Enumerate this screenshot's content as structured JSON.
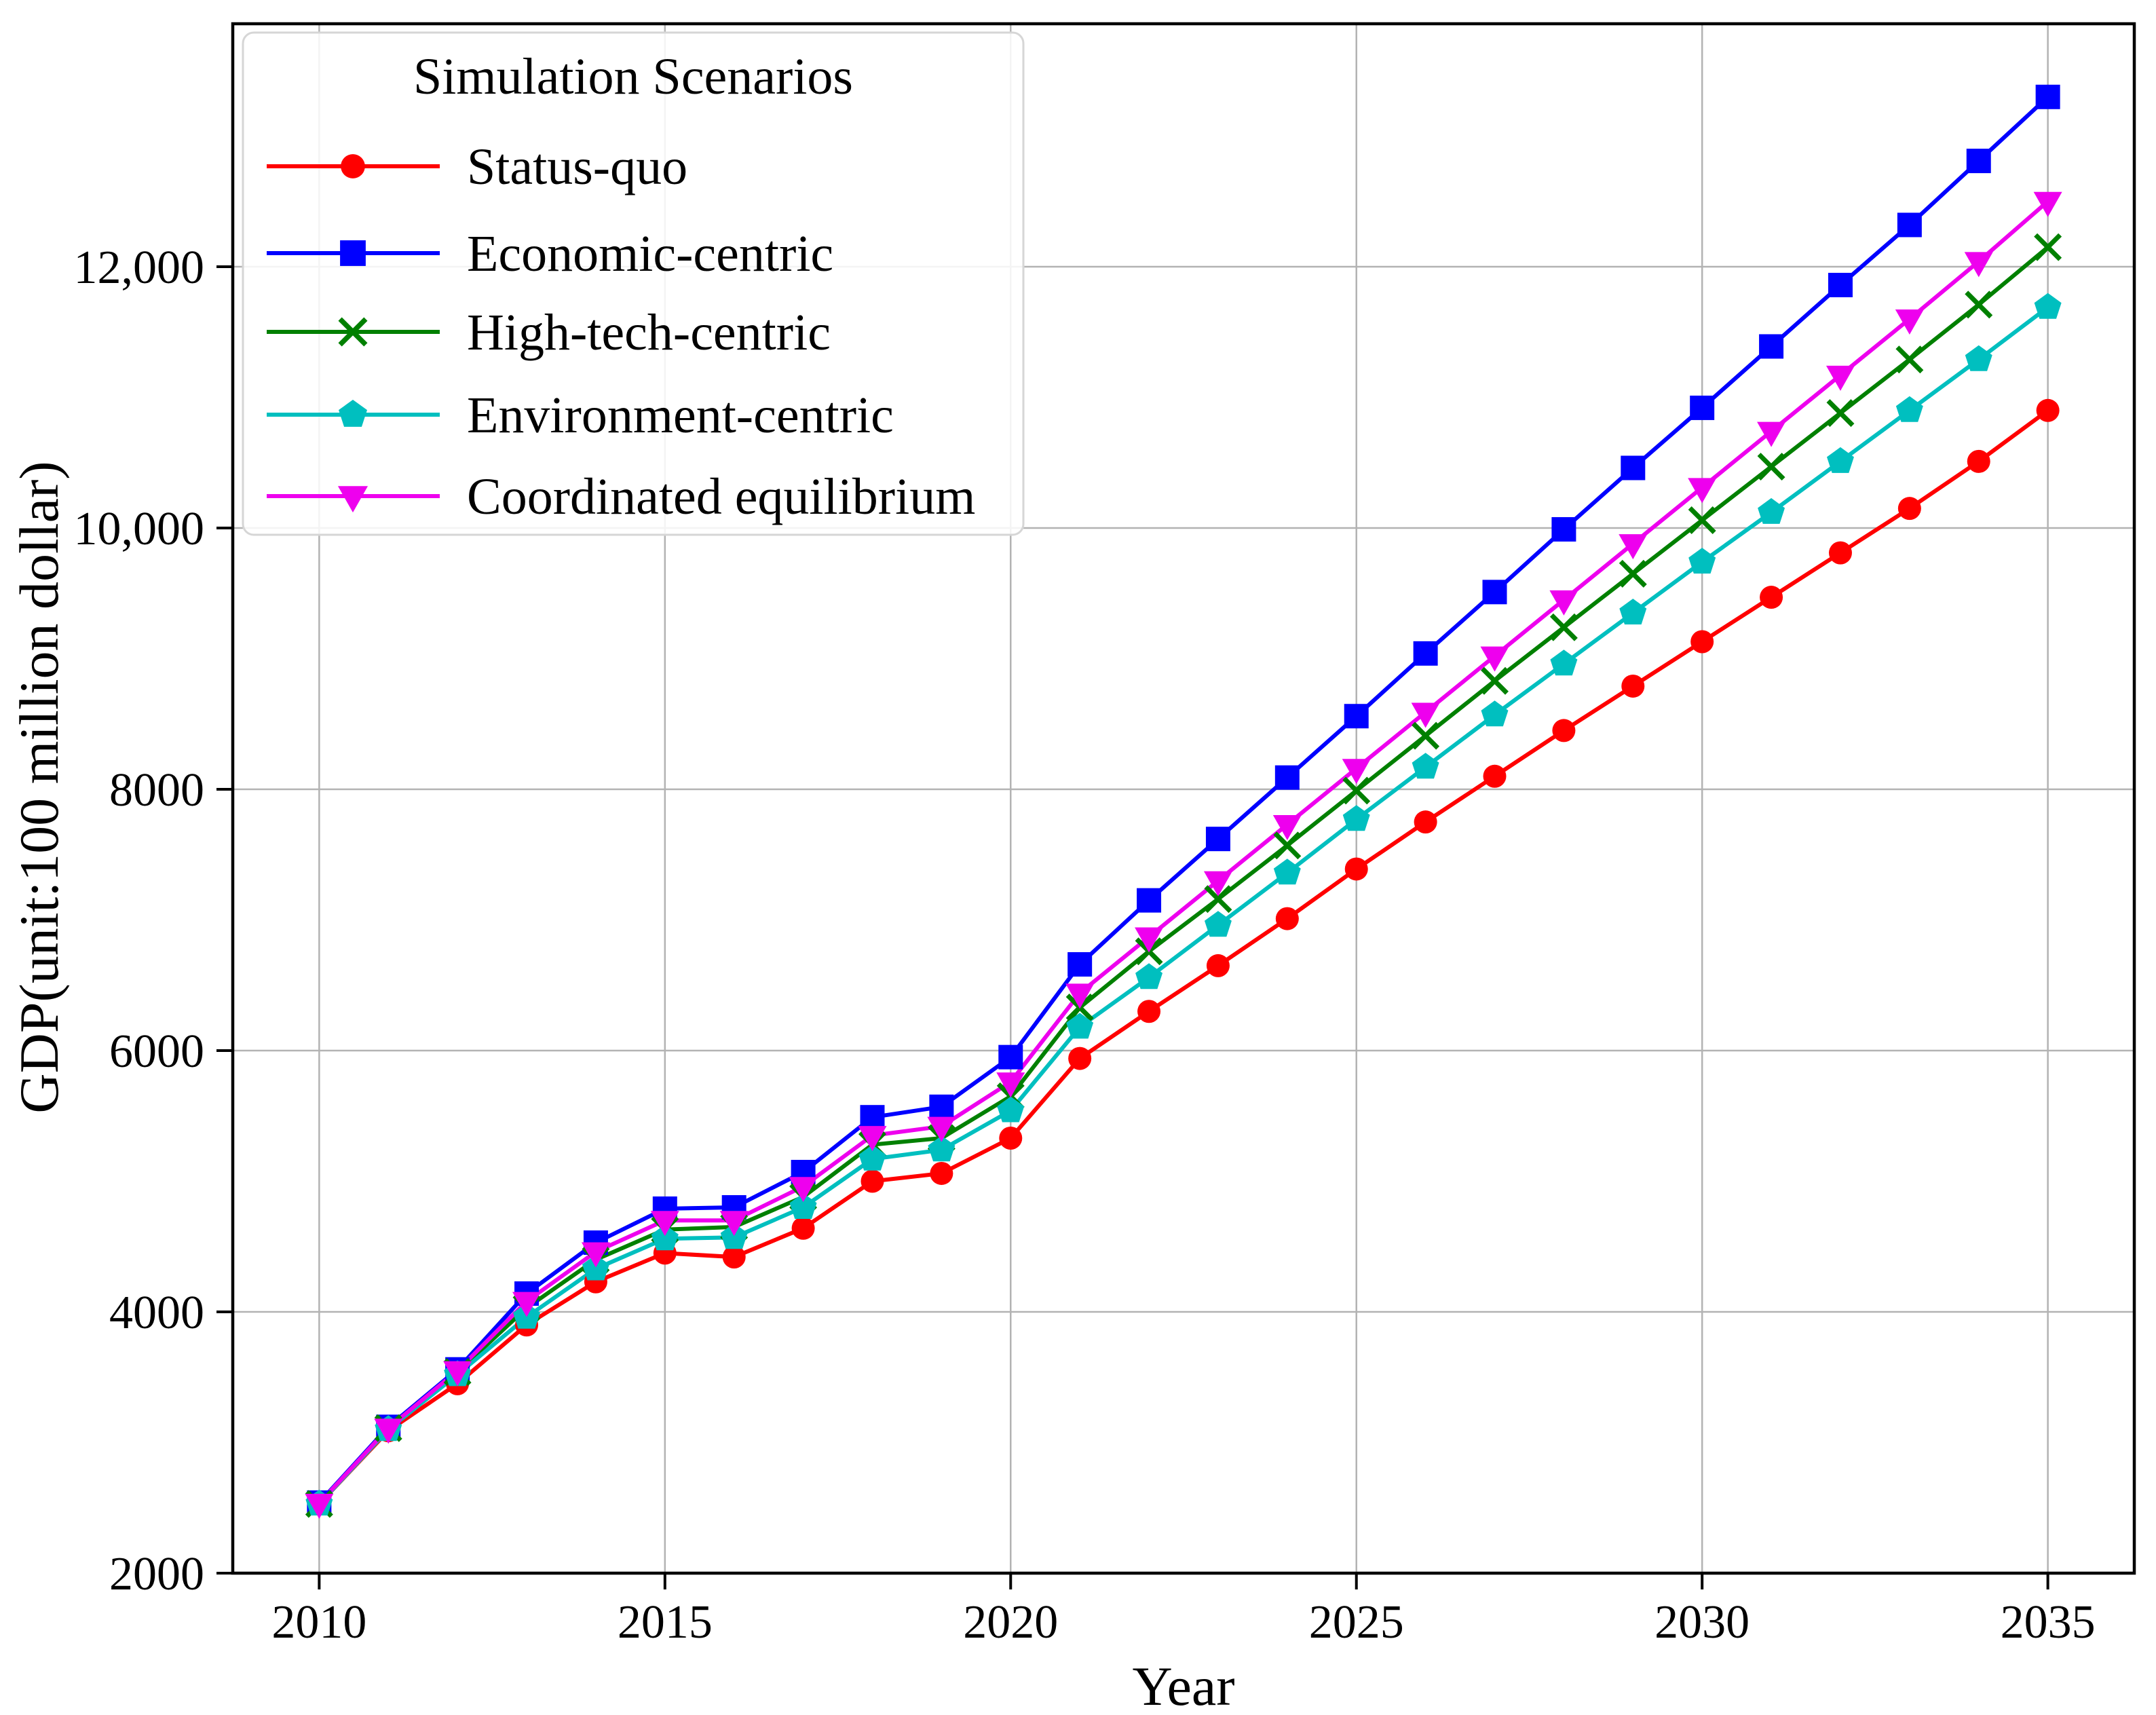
{
  "chart_data": {
    "type": "line",
    "title": "",
    "xlabel": "Year",
    "ylabel": "GDP(unit:100 million dollar)",
    "legend_title": "Simulation Scenarios",
    "legend_position": "upper left",
    "grid": true,
    "xlim": [
      2008.75,
      2036.25
    ],
    "ylim": [
      2000,
      13860
    ],
    "xticks": {
      "values": [
        2010,
        2015,
        2020,
        2025,
        2030,
        2035
      ],
      "labels": [
        "2010",
        "2015",
        "2020",
        "2025",
        "2030",
        "2035"
      ]
    },
    "yticks": {
      "values": [
        2000,
        4000,
        6000,
        8000,
        10000,
        12000
      ],
      "labels": [
        "2000",
        "4000",
        "6000",
        "8000",
        "10,000",
        "12,000"
      ]
    },
    "x": [
      2010,
      2011,
      2012,
      2013,
      2014,
      2015,
      2016,
      2017,
      2018,
      2019,
      2020,
      2021,
      2022,
      2023,
      2024,
      2025,
      2026,
      2027,
      2028,
      2029,
      2030,
      2031,
      2032,
      2033,
      2034,
      2035
    ],
    "series": [
      {
        "name": "Status-quo",
        "color": "#FF0000",
        "marker": "circle",
        "values": [
          2530,
          3090,
          3450,
          3900,
          4230,
          4450,
          4420,
          4640,
          5000,
          5060,
          5330,
          5940,
          6300,
          6650,
          7010,
          7390,
          7750,
          8100,
          8450,
          8790,
          9130,
          9470,
          9810,
          10150,
          10510,
          10900
        ]
      },
      {
        "name": "Economic-centric",
        "color": "#0000FF",
        "marker": "square",
        "values": [
          2540,
          3120,
          3560,
          4140,
          4530,
          4790,
          4800,
          5070,
          5490,
          5570,
          5950,
          6660,
          7150,
          7620,
          8090,
          8560,
          9040,
          9510,
          9990,
          10460,
          10920,
          11390,
          11860,
          12320,
          12810,
          13300
        ]
      },
      {
        "name": "High-tech-centric",
        "color": "#008000",
        "marker": "x",
        "values": [
          2530,
          3110,
          3540,
          4030,
          4400,
          4630,
          4650,
          4880,
          5280,
          5330,
          5650,
          6330,
          6760,
          7160,
          7570,
          7990,
          8410,
          8830,
          9240,
          9650,
          10060,
          10470,
          10880,
          11290,
          11710,
          12150
        ]
      },
      {
        "name": "Environment-centric",
        "color": "#00BFBF",
        "marker": "pentagon",
        "values": [
          2530,
          3100,
          3520,
          3960,
          4330,
          4560,
          4570,
          4800,
          5170,
          5240,
          5540,
          6180,
          6560,
          6960,
          7360,
          7770,
          8170,
          8570,
          8960,
          9350,
          9740,
          10120,
          10510,
          10900,
          11290,
          11690
        ]
      },
      {
        "name": "Coordinated equilibrium",
        "color": "#EE00EE",
        "marker": "triangle-down",
        "values": [
          2535,
          3110,
          3550,
          4080,
          4460,
          4700,
          4700,
          4960,
          5350,
          5420,
          5760,
          6440,
          6870,
          7300,
          7730,
          8160,
          8590,
          9020,
          9450,
          9880,
          10310,
          10740,
          11170,
          11600,
          12040,
          12500
        ]
      }
    ]
  },
  "style": {
    "background": "#FFFFFF",
    "grid_color": "#B3B3B3",
    "frame_color": "#000000",
    "tick_label_color": "#000000",
    "legend_border_color": "#D6D6D6",
    "legend_background": "#FFFFFF"
  }
}
